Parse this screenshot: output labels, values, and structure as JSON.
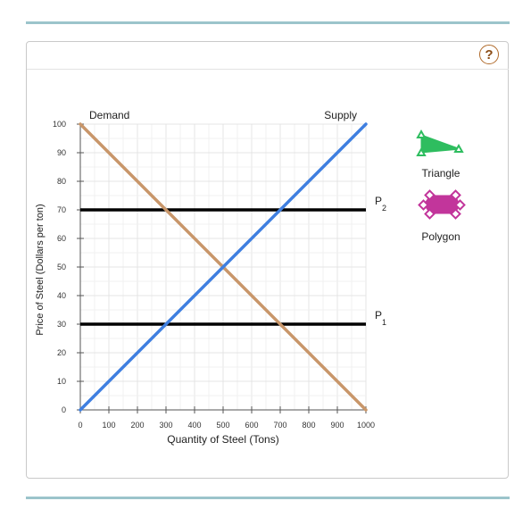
{
  "help_label": "?",
  "tools": [
    {
      "label": "Triangle",
      "color": "#2ebd5f",
      "icon": "triangle-icon"
    },
    {
      "label": "Polygon",
      "color": "#c2359b",
      "icon": "polygon-icon"
    }
  ],
  "chart_data": {
    "type": "line",
    "xlabel": "Quantity of Steel (Tons)",
    "ylabel": "Price of Steel (Dollars per ton)",
    "xlim": [
      0,
      1000
    ],
    "ylim": [
      0,
      100
    ],
    "x_ticks": [
      0,
      100,
      200,
      300,
      400,
      500,
      600,
      700,
      800,
      900,
      1000
    ],
    "y_ticks": [
      0,
      10,
      20,
      30,
      40,
      50,
      60,
      70,
      80,
      90,
      100
    ],
    "grid": true,
    "series": [
      {
        "name": "Demand",
        "color": "#c8966a",
        "points": [
          [
            0,
            100
          ],
          [
            1000,
            0
          ]
        ]
      },
      {
        "name": "Supply",
        "color": "#3f7fe0",
        "points": [
          [
            0,
            0
          ],
          [
            1000,
            100
          ]
        ]
      }
    ],
    "price_lines": [
      {
        "label": "P",
        "subscript": "2",
        "value": 70,
        "color": "#000000"
      },
      {
        "label": "P",
        "subscript": "1",
        "value": 30,
        "color": "#000000"
      }
    ]
  }
}
